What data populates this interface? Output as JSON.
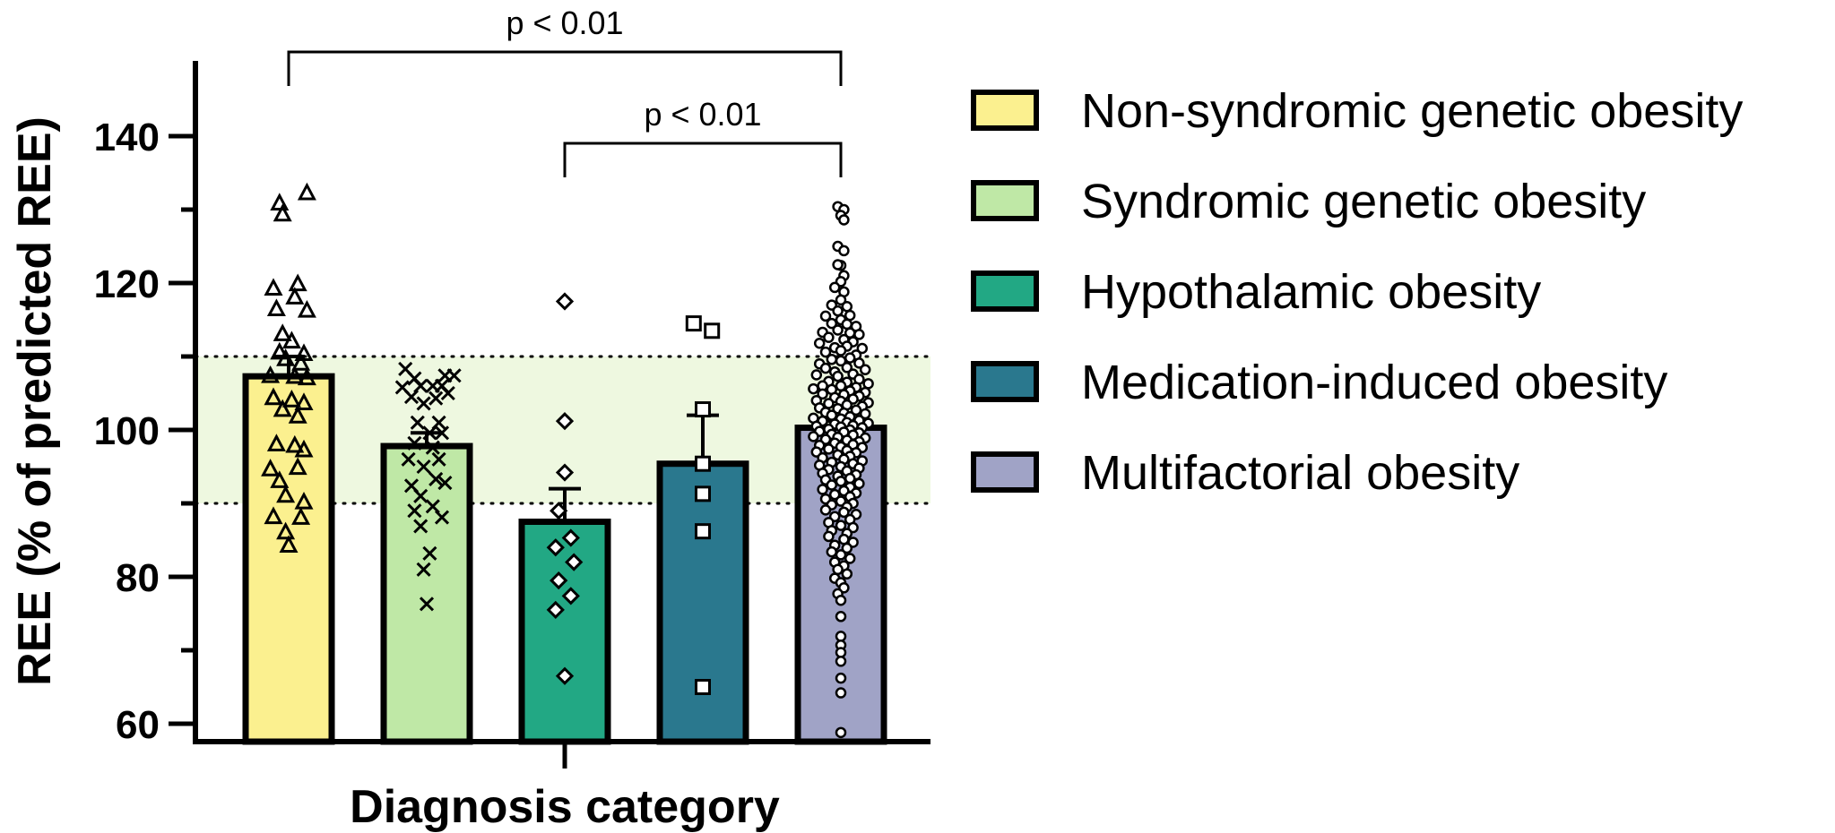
{
  "chart_data": {
    "type": "bar",
    "title": "",
    "xlabel": "Diagnosis category",
    "ylabel": "REE (% of predicted REE)",
    "ylim": [
      58,
      150
    ],
    "yticks": [
      60,
      80,
      100,
      120,
      140
    ],
    "y_minor_step": 10,
    "reference_band": {
      "low": 90,
      "high": 110,
      "color": "#eef8e0"
    },
    "categories": [
      "Non-syndromic genetic obesity",
      "Syndromic genetic obesity",
      "Hypothalamic obesity",
      "Medication-induced obesity",
      "Multifactorial obesity"
    ],
    "values": [
      107.3,
      97.8,
      87.5,
      95.4,
      100.3
    ],
    "error_upper": [
      110.0,
      99.6,
      92.0,
      102.0,
      101.2
    ],
    "colors": [
      "#fbf08f",
      "#bfe8a6",
      "#22a884",
      "#2a788e",
      "#a0a3c6"
    ],
    "markers": [
      "triangle",
      "x",
      "diamond",
      "square",
      "circle"
    ],
    "legend": [
      {
        "label": "Non-syndromic genetic obesity",
        "color": "#fbf08f"
      },
      {
        "label": "Syndromic genetic obesity",
        "color": "#bfe8a6"
      },
      {
        "label": "Hypothalamic obesity",
        "color": "#22a884"
      },
      {
        "label": "Medication-induced obesity",
        "color": "#2a788e"
      },
      {
        "label": "Multifactorial obesity",
        "color": "#a0a3c6"
      }
    ],
    "significance": [
      {
        "from": 0,
        "to": 4,
        "label": "p < 0.01",
        "level": 152
      },
      {
        "from": 2,
        "to": 4,
        "label": "p < 0.01",
        "level": 140
      }
    ],
    "points": [
      [
        [
          0.6,
          132.2
        ],
        [
          -0.3,
          130.8
        ],
        [
          -0.2,
          129.3
        ],
        [
          -0.5,
          119.2
        ],
        [
          0.3,
          119.8
        ],
        [
          0.2,
          118.0
        ],
        [
          -0.4,
          116.4
        ],
        [
          0.6,
          116.2
        ],
        [
          -0.2,
          113.0
        ],
        [
          0.1,
          112.0
        ],
        [
          -0.3,
          110.5
        ],
        [
          0.5,
          110.3
        ],
        [
          -0.1,
          109.6
        ],
        [
          0.4,
          109.0
        ],
        [
          -0.6,
          107.3
        ],
        [
          0.2,
          107.2
        ],
        [
          0.6,
          107.0
        ],
        [
          -0.5,
          104.3
        ],
        [
          0.1,
          104.0
        ],
        [
          0.5,
          103.6
        ],
        [
          -0.2,
          102.7
        ],
        [
          0.3,
          101.8
        ],
        [
          -0.4,
          98.0
        ],
        [
          0.2,
          97.8
        ],
        [
          0.5,
          97.2
        ],
        [
          -0.6,
          94.6
        ],
        [
          0.3,
          94.8
        ],
        [
          -0.3,
          93.0
        ],
        [
          -0.1,
          91.0
        ],
        [
          0.5,
          90.1
        ],
        [
          -0.5,
          88.1
        ],
        [
          0.4,
          88.0
        ],
        [
          -0.1,
          86.0
        ],
        [
          0.0,
          84.2
        ]
      ],
      [
        [
          -0.7,
          108.3
        ],
        [
          -0.4,
          107.0
        ],
        [
          0.6,
          107.4
        ],
        [
          0.9,
          107.4
        ],
        [
          -0.2,
          106.0
        ],
        [
          0.2,
          106.0
        ],
        [
          0.5,
          106.0
        ],
        [
          -0.8,
          105.8
        ],
        [
          -0.5,
          104.5
        ],
        [
          0.3,
          104.3
        ],
        [
          0.7,
          105.0
        ],
        [
          -0.1,
          103.6
        ],
        [
          0.4,
          101.0
        ],
        [
          -0.3,
          101.0
        ],
        [
          0.1,
          99.6
        ],
        [
          0.5,
          99.6
        ],
        [
          -0.4,
          98.2
        ],
        [
          0.2,
          97.6
        ],
        [
          -0.6,
          96.0
        ],
        [
          0.4,
          96.0
        ],
        [
          -0.1,
          95.0
        ],
        [
          0.3,
          93.3
        ],
        [
          -0.5,
          92.4
        ],
        [
          0.6,
          92.8
        ],
        [
          -0.2,
          91.0
        ],
        [
          0.2,
          89.6
        ],
        [
          -0.4,
          89.0
        ],
        [
          0.5,
          88.1
        ],
        [
          -0.2,
          86.9
        ],
        [
          0.1,
          83.2
        ],
        [
          -0.1,
          81.0
        ],
        [
          0.0,
          76.3
        ]
      ],
      [
        [
          0.0,
          117.5
        ],
        [
          0.0,
          101.2
        ],
        [
          0.0,
          94.2
        ],
        [
          -0.2,
          89.0
        ],
        [
          0.2,
          85.3
        ],
        [
          -0.3,
          84.0
        ],
        [
          0.3,
          82.0
        ],
        [
          -0.2,
          79.5
        ],
        [
          0.2,
          77.4
        ],
        [
          -0.3,
          75.5
        ],
        [
          0.0,
          66.5
        ]
      ],
      [
        [
          -0.3,
          114.5
        ],
        [
          0.3,
          113.5
        ],
        [
          0.0,
          102.8
        ],
        [
          0.0,
          95.4
        ],
        [
          0.0,
          91.3
        ],
        [
          0.0,
          86.2
        ],
        [
          0.0,
          65.0
        ]
      ],
      [
        [
          -0.1,
          130.4
        ],
        [
          0.1,
          130.0
        ],
        [
          0.0,
          129.2
        ],
        [
          0.1,
          128.6
        ],
        [
          -0.1,
          125.0
        ],
        [
          0.1,
          124.4
        ],
        [
          0.0,
          122.4
        ],
        [
          -0.1,
          122.5
        ],
        [
          0.1,
          121.0
        ],
        [
          0.0,
          120.2
        ],
        [
          -0.2,
          119.4
        ],
        [
          0.1,
          118.8
        ],
        [
          0.0,
          117.7
        ],
        [
          -0.3,
          117.0
        ],
        [
          0.2,
          116.8
        ],
        [
          -0.1,
          116.2
        ],
        [
          -0.5,
          115.5
        ],
        [
          0.3,
          115.6
        ],
        [
          0.0,
          115.0
        ],
        [
          -0.3,
          114.5
        ],
        [
          0.2,
          114.4
        ],
        [
          0.5,
          114.1
        ],
        [
          -0.6,
          113.3
        ],
        [
          -0.1,
          113.6
        ],
        [
          0.3,
          113.2
        ],
        [
          0.6,
          113.0
        ],
        [
          -0.4,
          112.6
        ],
        [
          0.1,
          112.3
        ],
        [
          -0.7,
          111.8
        ],
        [
          0.4,
          112.0
        ],
        [
          -0.2,
          111.2
        ],
        [
          0.2,
          111.4
        ],
        [
          0.7,
          111.1
        ],
        [
          -0.5,
          110.6
        ],
        [
          0.0,
          110.8
        ],
        [
          0.5,
          110.2
        ],
        [
          -0.3,
          109.6
        ],
        [
          0.3,
          109.8
        ],
        [
          -0.7,
          109.0
        ],
        [
          0.0,
          109.4
        ],
        [
          0.6,
          109.1
        ],
        [
          -0.5,
          108.4
        ],
        [
          0.2,
          108.5
        ],
        [
          0.8,
          108.2
        ],
        [
          -0.2,
          107.9
        ],
        [
          0.4,
          107.6
        ],
        [
          -0.8,
          107.5
        ],
        [
          -0.1,
          107.3
        ],
        [
          0.6,
          106.9
        ],
        [
          -0.4,
          106.6
        ],
        [
          0.2,
          106.5
        ],
        [
          0.9,
          106.3
        ],
        [
          -0.6,
          106.0
        ],
        [
          0.0,
          106.0
        ],
        [
          0.5,
          105.8
        ],
        [
          -0.9,
          105.6
        ],
        [
          -0.3,
          105.5
        ],
        [
          0.3,
          105.3
        ],
        [
          0.8,
          105.1
        ],
        [
          -0.6,
          104.9
        ],
        [
          0.1,
          104.8
        ],
        [
          0.6,
          104.6
        ],
        [
          -0.2,
          104.4
        ],
        [
          0.4,
          104.2
        ],
        [
          -0.8,
          104.0
        ],
        [
          0.0,
          103.9
        ],
        [
          0.9,
          103.7
        ],
        [
          -0.4,
          103.6
        ],
        [
          0.2,
          103.4
        ],
        [
          0.7,
          103.2
        ],
        [
          -0.7,
          103.0
        ],
        [
          -0.1,
          102.9
        ],
        [
          0.5,
          102.7
        ],
        [
          -0.5,
          102.4
        ],
        [
          0.1,
          102.3
        ],
        [
          0.8,
          102.2
        ],
        [
          -0.3,
          102.0
        ],
        [
          0.3,
          101.8
        ],
        [
          -0.9,
          101.6
        ],
        [
          0.0,
          101.5
        ],
        [
          0.6,
          101.3
        ],
        [
          -0.6,
          101.2
        ],
        [
          0.2,
          101.0
        ],
        [
          0.9,
          100.9
        ],
        [
          -0.2,
          100.8
        ],
        [
          0.4,
          100.6
        ],
        [
          -0.8,
          100.5
        ],
        [
          0.0,
          100.4
        ],
        [
          0.7,
          100.3
        ],
        [
          -0.4,
          100.1
        ],
        [
          0.3,
          100.0
        ],
        [
          -0.7,
          99.8
        ],
        [
          0.1,
          99.7
        ],
        [
          0.6,
          99.6
        ],
        [
          -0.3,
          99.4
        ],
        [
          0.4,
          99.3
        ],
        [
          -0.9,
          99.1
        ],
        [
          -0.1,
          99.0
        ],
        [
          0.8,
          98.9
        ],
        [
          -0.5,
          98.7
        ],
        [
          0.2,
          98.6
        ],
        [
          0.6,
          98.4
        ],
        [
          -0.2,
          98.2
        ],
        [
          0.4,
          98.0
        ],
        [
          -0.7,
          97.9
        ],
        [
          0.0,
          97.7
        ],
        [
          0.7,
          97.6
        ],
        [
          -0.4,
          97.4
        ],
        [
          0.2,
          97.2
        ],
        [
          -0.8,
          97.0
        ],
        [
          0.5,
          96.9
        ],
        [
          -0.1,
          96.6
        ],
        [
          0.3,
          96.4
        ],
        [
          -0.6,
          96.2
        ],
        [
          0.1,
          96.0
        ],
        [
          0.7,
          95.8
        ],
        [
          -0.3,
          95.6
        ],
        [
          0.4,
          95.4
        ],
        [
          -0.7,
          95.2
        ],
        [
          0.0,
          95.0
        ],
        [
          0.6,
          94.8
        ],
        [
          -0.4,
          94.6
        ],
        [
          0.2,
          94.4
        ],
        [
          -0.6,
          94.1
        ],
        [
          0.5,
          93.9
        ],
        [
          -0.1,
          93.7
        ],
        [
          0.3,
          93.4
        ],
        [
          -0.5,
          93.2
        ],
        [
          0.0,
          93.0
        ],
        [
          0.6,
          92.7
        ],
        [
          -0.3,
          92.5
        ],
        [
          0.3,
          92.2
        ],
        [
          -0.6,
          91.9
        ],
        [
          0.1,
          91.7
        ],
        [
          0.5,
          91.4
        ],
        [
          -0.2,
          91.2
        ],
        [
          0.3,
          90.9
        ],
        [
          -0.5,
          90.6
        ],
        [
          0.0,
          90.3
        ],
        [
          0.4,
          90.0
        ],
        [
          -0.3,
          89.8
        ],
        [
          0.2,
          89.5
        ],
        [
          -0.5,
          89.1
        ],
        [
          0.1,
          88.8
        ],
        [
          0.5,
          88.5
        ],
        [
          -0.2,
          88.2
        ],
        [
          0.3,
          87.8
        ],
        [
          -0.4,
          87.4
        ],
        [
          0.0,
          87.0
        ],
        [
          0.4,
          86.7
        ],
        [
          -0.3,
          86.3
        ],
        [
          0.2,
          85.9
        ],
        [
          -0.4,
          85.5
        ],
        [
          0.1,
          85.1
        ],
        [
          0.4,
          84.7
        ],
        [
          -0.2,
          84.3
        ],
        [
          0.2,
          83.9
        ],
        [
          -0.3,
          83.4
        ],
        [
          0.0,
          83.0
        ],
        [
          0.3,
          82.5
        ],
        [
          -0.2,
          82.0
        ],
        [
          0.1,
          81.5
        ],
        [
          -0.1,
          81.0
        ],
        [
          0.2,
          80.4
        ],
        [
          -0.2,
          79.8
        ],
        [
          0.0,
          79.2
        ],
        [
          0.1,
          78.5
        ],
        [
          -0.1,
          77.7
        ],
        [
          0.0,
          76.8
        ],
        [
          0.0,
          74.6
        ],
        [
          0.0,
          71.9
        ],
        [
          0.0,
          70.7
        ],
        [
          0.0,
          69.7
        ],
        [
          0.0,
          68.5
        ],
        [
          0.0,
          66.2
        ],
        [
          0.0,
          64.2
        ],
        [
          0.0,
          58.8
        ]
      ]
    ]
  }
}
